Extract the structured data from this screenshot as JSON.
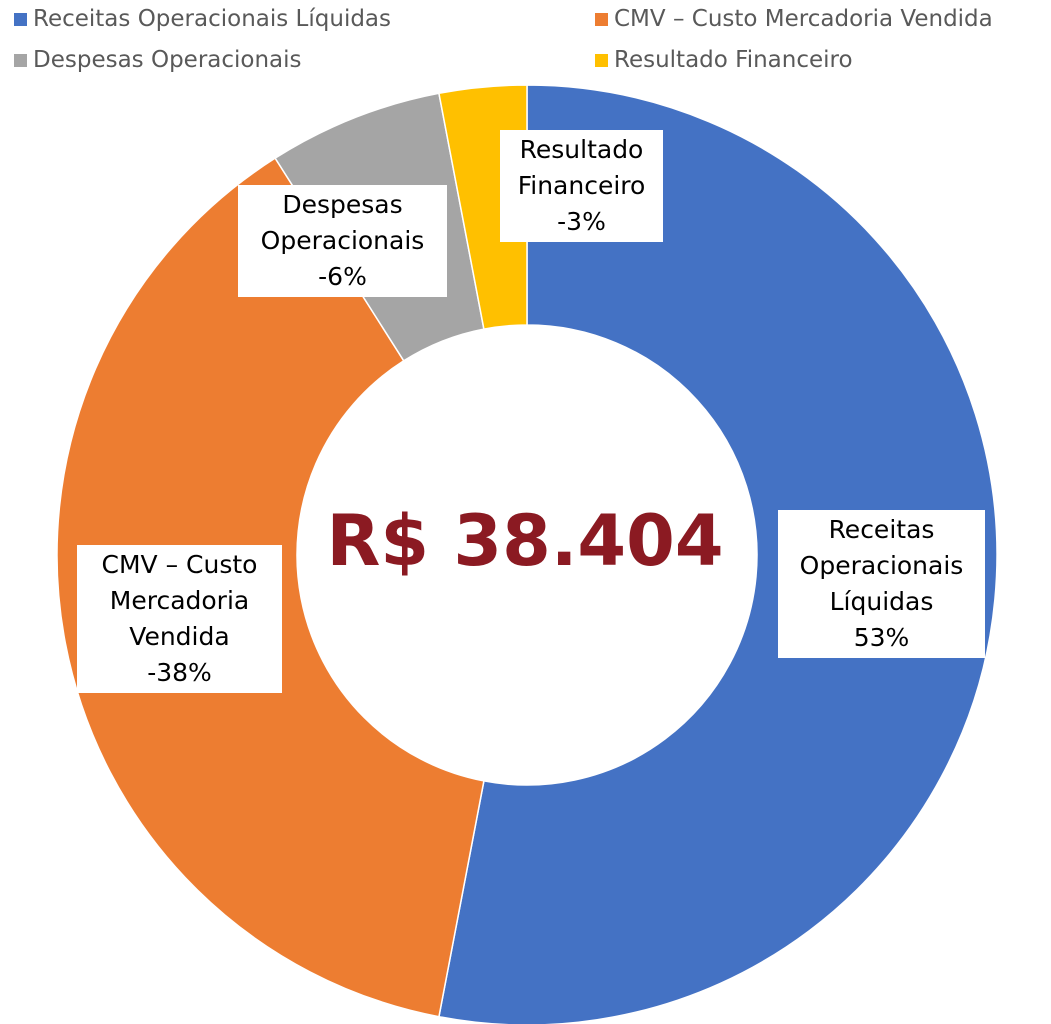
{
  "chart_data": {
    "type": "donut",
    "categories": [
      "Receitas Operacionais Líquidas",
      "CMV – Custo Mercadoria Vendida",
      "Despesas Operacionais",
      "Resultado Financeiro"
    ],
    "values": [
      53,
      -38,
      -6,
      -3
    ],
    "value_labels": [
      "53%",
      "-38%",
      "-6%",
      "-3%"
    ],
    "colors": [
      "#4472c4",
      "#ed7d31",
      "#a5a5a5",
      "#ffc000"
    ],
    "center_label": "R$ 38.404",
    "legend": "top"
  }
}
